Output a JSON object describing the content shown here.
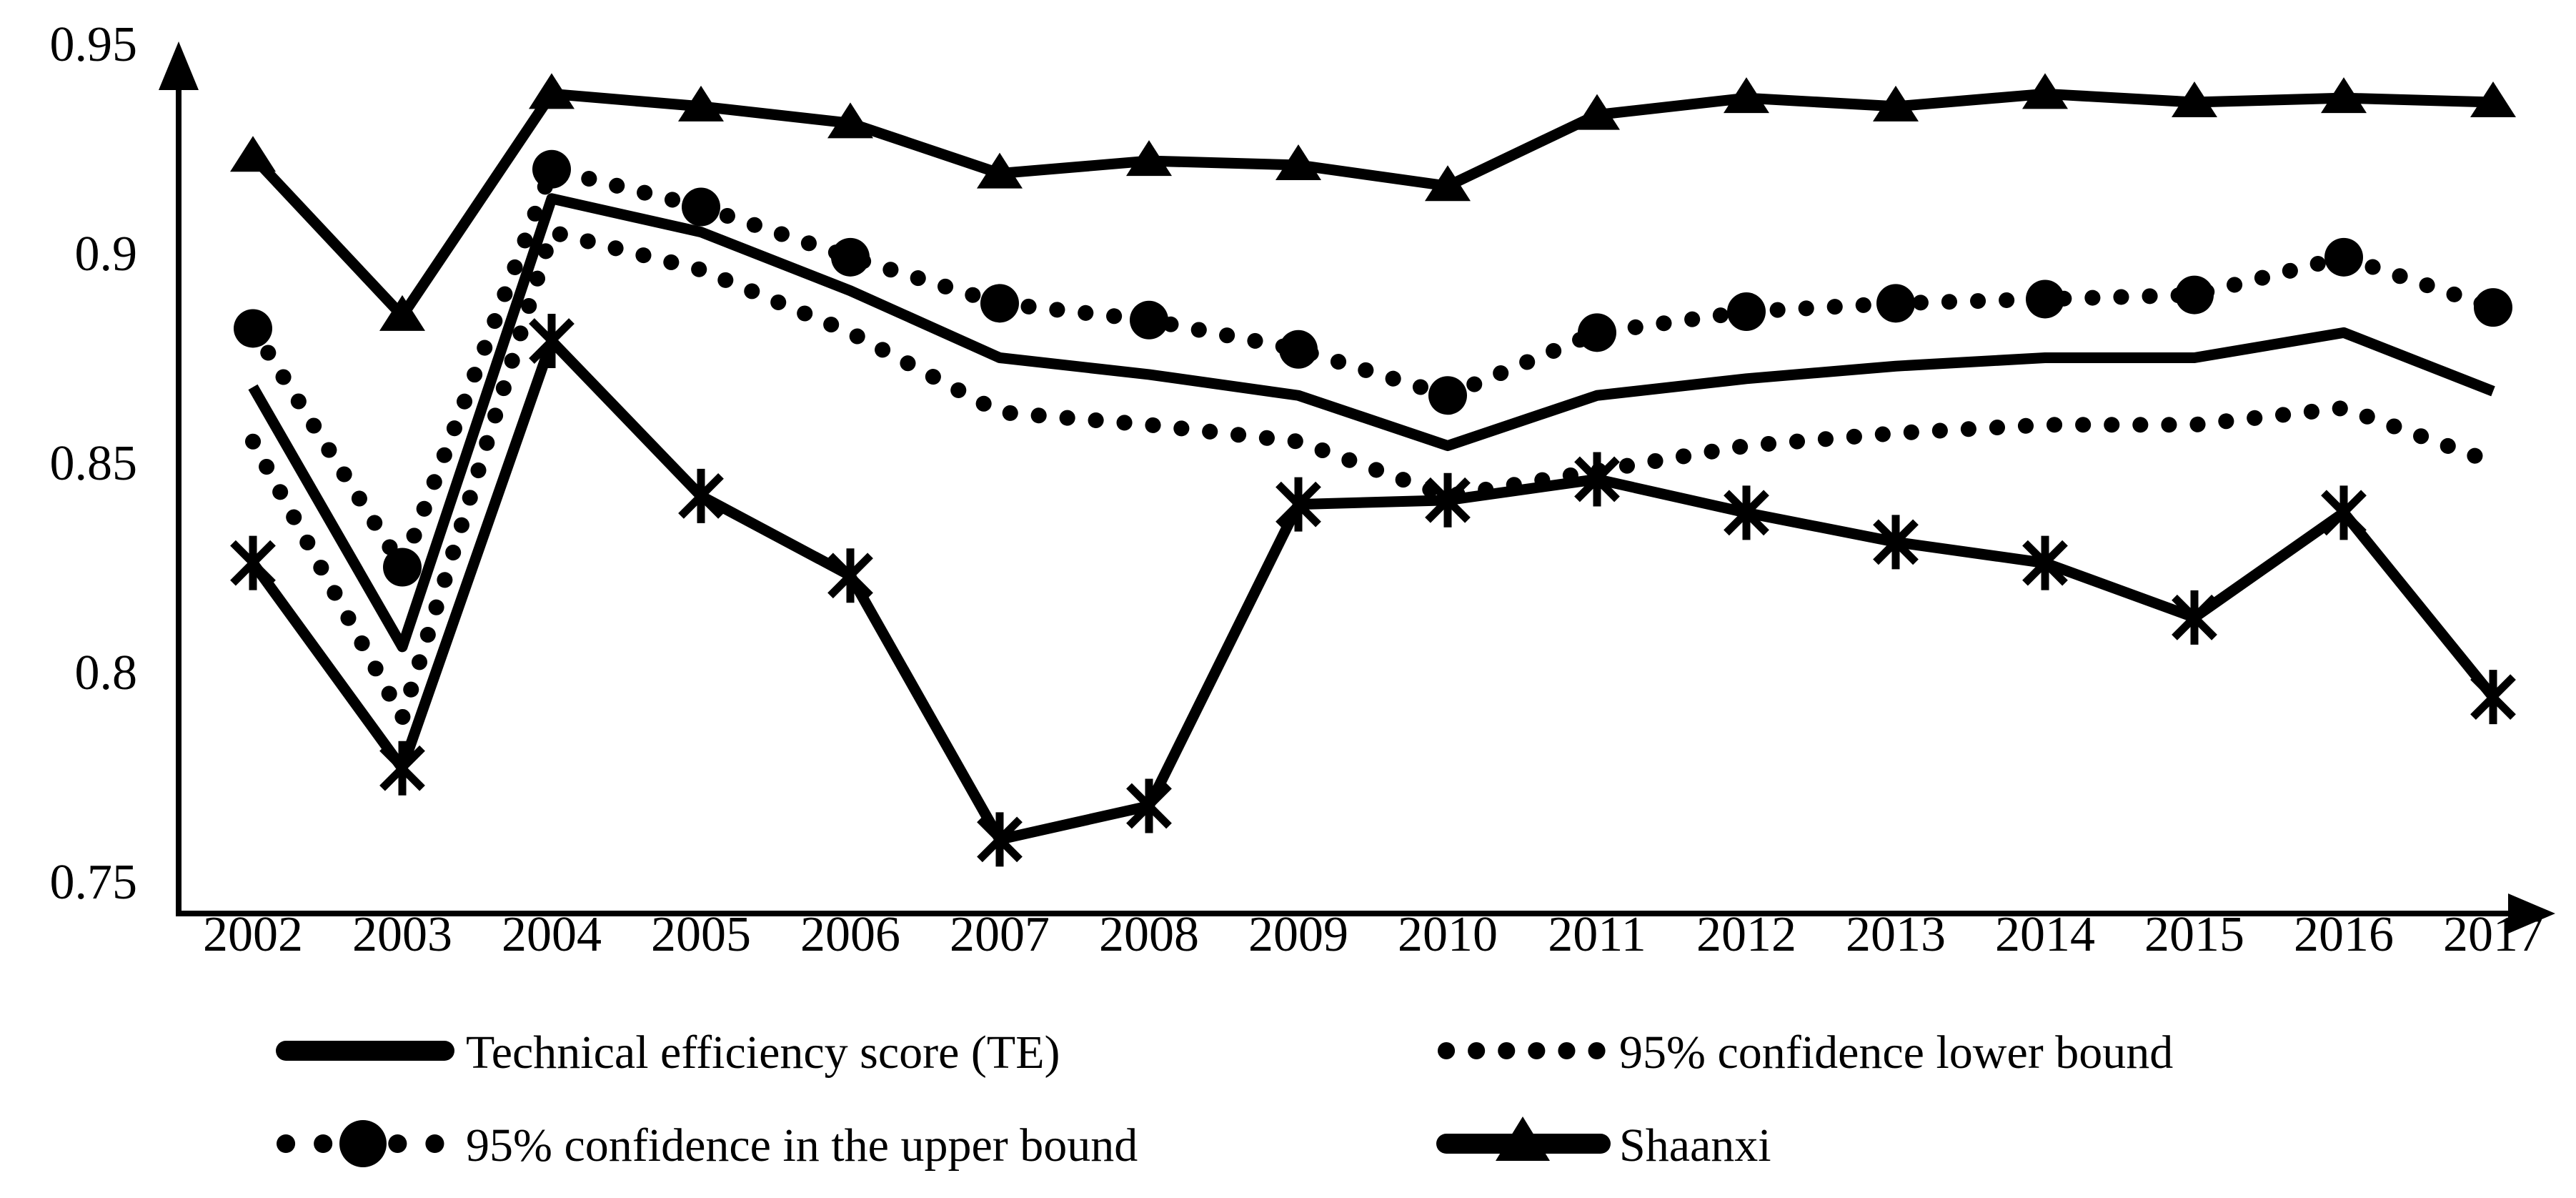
{
  "chart_data": {
    "type": "line",
    "title": "",
    "xlabel": "",
    "ylabel": "",
    "categories": [
      "2002",
      "2003",
      "2004",
      "2005",
      "2006",
      "2007",
      "2008",
      "2009",
      "2010",
      "2011",
      "2012",
      "2013",
      "2014",
      "2015",
      "2016",
      "2017"
    ],
    "ylim": [
      0.75,
      0.95
    ],
    "grid": false,
    "legend_position": "bottom",
    "y_ticks": [
      {
        "label": "0.95",
        "value": 0.95
      },
      {
        "label": "0.9",
        "value": 0.9
      },
      {
        "label": "0.85",
        "value": 0.85
      },
      {
        "label": "0.8",
        "value": 0.8
      },
      {
        "label": "0.75",
        "value": 0.75
      }
    ],
    "series": [
      {
        "name": "Technical efficiency score (TE)",
        "style": "solid",
        "marker": "none",
        "in_legend": true,
        "values": [
          0.868,
          0.806,
          0.913,
          0.905,
          0.891,
          0.875,
          0.871,
          0.866,
          0.854,
          0.866,
          0.87,
          0.873,
          0.875,
          0.875,
          0.881,
          0.867
        ]
      },
      {
        "name": "95% confidence lower bound",
        "style": "dotted",
        "marker": "none",
        "in_legend": true,
        "values": [
          0.855,
          0.789,
          0.905,
          0.896,
          0.881,
          0.862,
          0.859,
          0.855,
          0.842,
          0.848,
          0.854,
          0.857,
          0.859,
          0.859,
          0.863,
          0.85
        ]
      },
      {
        "name": "95% confidence in the upper bound",
        "style": "dotted",
        "marker": "circle",
        "in_legend": true,
        "values": [
          0.882,
          0.825,
          0.92,
          0.911,
          0.899,
          0.888,
          0.884,
          0.877,
          0.866,
          0.881,
          0.886,
          0.888,
          0.889,
          0.89,
          0.899,
          0.887
        ]
      },
      {
        "name": "Shaanxi",
        "style": "solid",
        "marker": "triangle",
        "in_legend": true,
        "values": [
          0.923,
          0.885,
          0.938,
          0.935,
          0.931,
          0.919,
          0.922,
          0.921,
          0.916,
          0.933,
          0.937,
          0.935,
          0.938,
          0.936,
          0.937,
          0.936
        ]
      },
      {
        "name": "",
        "style": "solid",
        "marker": "asterisk",
        "in_legend": false,
        "values": [
          0.826,
          0.777,
          0.879,
          0.842,
          0.823,
          0.76,
          0.768,
          0.84,
          0.841,
          0.846,
          0.838,
          0.831,
          0.826,
          0.813,
          0.838,
          0.794
        ]
      }
    ],
    "colors": {
      "foreground": "#000000",
      "background": "#ffffff"
    }
  }
}
